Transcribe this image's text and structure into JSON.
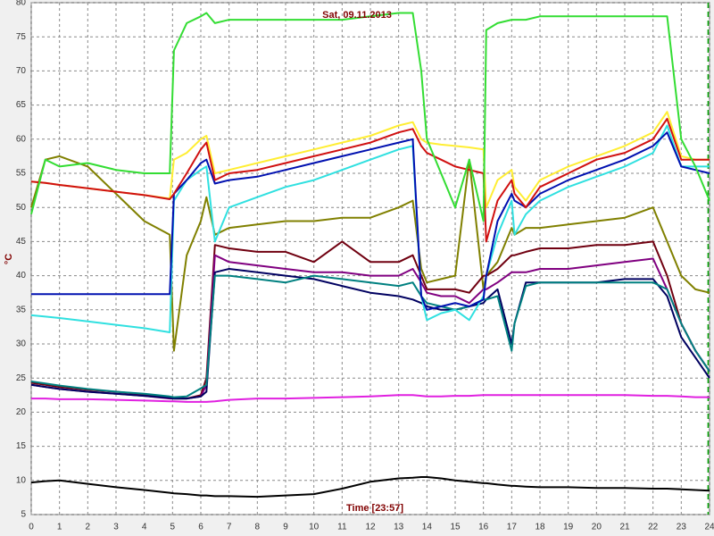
{
  "chart_data": {
    "type": "line",
    "title": "Sat, 09.11.2013",
    "x_label": "Time [23:57]",
    "y_label": "°C",
    "xlim": [
      0,
      24
    ],
    "ylim": [
      5,
      80
    ],
    "xticks": [
      0,
      1,
      2,
      3,
      4,
      5,
      6,
      7,
      8,
      9,
      10,
      11,
      12,
      13,
      14,
      15,
      16,
      17,
      18,
      19,
      20,
      21,
      22,
      23,
      24
    ],
    "yticks": [
      5,
      10,
      15,
      20,
      25,
      30,
      35,
      40,
      45,
      50,
      55,
      60,
      65,
      70,
      75,
      80
    ],
    "grid": true,
    "marker_x": 23.95,
    "marker_color": "#00a000",
    "x": [
      0,
      0.5,
      1,
      2,
      3,
      4,
      4.9,
      5.05,
      5.5,
      6,
      6.2,
      6.5,
      7,
      8,
      9,
      10,
      11,
      12,
      13,
      13.5,
      13.8,
      14,
      14.5,
      15,
      15.5,
      16,
      16.1,
      16.5,
      17,
      17.1,
      17.5,
      18,
      19,
      20,
      21,
      22,
      22.5,
      23,
      23.5,
      24
    ],
    "series": [
      {
        "color": "#808000",
        "values": [
          50,
          57,
          57.5,
          56,
          52,
          48,
          46,
          29,
          43,
          48,
          51.5,
          46,
          47,
          47.5,
          48,
          48,
          48.5,
          48.5,
          50,
          51,
          41,
          39,
          39.5,
          40,
          57,
          38,
          40,
          42,
          47,
          46,
          47,
          47,
          47.5,
          48,
          48.5,
          50,
          45,
          40,
          38,
          37.5
        ]
      },
      {
        "color": "#700010",
        "values": [
          24.3,
          24,
          23.7,
          23.3,
          23,
          22.6,
          22.2,
          22,
          22,
          22.5,
          25,
          44.5,
          44,
          43.5,
          43.5,
          42,
          45,
          42,
          42,
          43,
          40,
          38,
          38,
          38,
          37.5,
          40,
          40,
          41,
          43,
          43,
          43.5,
          44,
          44,
          44.5,
          44.5,
          45,
          40,
          33,
          29,
          26
        ]
      },
      {
        "color": "#800080",
        "values": [
          24,
          23.7,
          23.4,
          23,
          22.7,
          22.4,
          22,
          22,
          22,
          22.3,
          24,
          43,
          42,
          41.5,
          41,
          40.5,
          40.5,
          40,
          40,
          41,
          39,
          37.5,
          37,
          37,
          36,
          38,
          38,
          39,
          40.5,
          40.5,
          40.5,
          41,
          41,
          41.5,
          42,
          42.5,
          38,
          33,
          29,
          26
        ]
      },
      {
        "color": "#000060",
        "values": [
          24,
          23.7,
          23.4,
          23,
          22.7,
          22.4,
          22.1,
          22,
          22,
          22.3,
          23,
          40.5,
          41,
          40.5,
          40,
          39.5,
          38.5,
          37.5,
          37,
          36.5,
          36,
          35.5,
          35,
          35,
          35.5,
          36,
          36.5,
          38,
          30,
          33,
          39,
          39,
          39,
          39,
          39.5,
          39.5,
          37,
          31,
          28,
          25
        ]
      },
      {
        "color": "#008080",
        "values": [
          24.5,
          24.2,
          23.9,
          23.4,
          23,
          22.7,
          22.3,
          22.2,
          22.3,
          23.5,
          24,
          40,
          40,
          39.5,
          39,
          40,
          39.5,
          39,
          38.5,
          39,
          37,
          36,
          35.5,
          35,
          35.5,
          36.5,
          36.5,
          37,
          29,
          33,
          38.5,
          39,
          39,
          39,
          39,
          39,
          38,
          33,
          29,
          26
        ]
      },
      {
        "color": "#e020e0",
        "values": [
          22,
          22,
          21.9,
          21.9,
          21.8,
          21.7,
          21.6,
          21.6,
          21.5,
          21.5,
          21.5,
          21.6,
          21.8,
          22,
          22,
          22.1,
          22.2,
          22.3,
          22.5,
          22.5,
          22.4,
          22.3,
          22.3,
          22.4,
          22.4,
          22.5,
          22.5,
          22.5,
          22.5,
          22.5,
          22.5,
          22.5,
          22.5,
          22.5,
          22.5,
          22.4,
          22.4,
          22.3,
          22.2,
          22.2
        ]
      },
      {
        "color": "#000000",
        "values": [
          9.7,
          9.9,
          10,
          9.5,
          9,
          8.6,
          8.2,
          8.1,
          8,
          7.8,
          7.8,
          7.7,
          7.7,
          7.6,
          7.8,
          8,
          8.8,
          9.8,
          10.3,
          10.4,
          10.5,
          10.5,
          10.3,
          10,
          9.8,
          9.6,
          9.6,
          9.4,
          9.2,
          9.2,
          9.1,
          9,
          9,
          8.9,
          8.9,
          8.8,
          8.8,
          8.7,
          8.6,
          8.5
        ]
      },
      {
        "color": "#30e0e0",
        "values": [
          34.2,
          34,
          33.8,
          33.3,
          32.8,
          32.3,
          31.7,
          51,
          54,
          55.5,
          56,
          45,
          50,
          51.5,
          53,
          54,
          55.5,
          57,
          58.5,
          59,
          37,
          33.5,
          34.5,
          35,
          33.5,
          37,
          40,
          46,
          51,
          46,
          49,
          51,
          53,
          54.5,
          56,
          58,
          62,
          56,
          56,
          56
        ]
      },
      {
        "color": "#0010b0",
        "values": [
          37.3,
          37.3,
          37.3,
          37.3,
          37.3,
          37.3,
          37.3,
          52,
          54,
          56.5,
          57,
          53.5,
          54,
          54.5,
          55.5,
          56.5,
          57.5,
          58.5,
          59.5,
          60,
          37,
          35,
          35.5,
          36,
          35.5,
          36.5,
          40,
          48,
          52,
          51,
          50,
          52,
          54,
          55.5,
          57,
          59,
          61,
          56,
          55.5,
          55
        ]
      },
      {
        "color": "#ffee33",
        "values": [
          53.8,
          53.6,
          53.3,
          52.8,
          52.3,
          51.8,
          51.3,
          57,
          58,
          60,
          60.5,
          55,
          55.5,
          56.5,
          57.5,
          58.5,
          59.5,
          60.5,
          62,
          62.5,
          60,
          59.5,
          59.2,
          59,
          58.8,
          58.5,
          50,
          54,
          55.5,
          53,
          51,
          54,
          56,
          57.5,
          59,
          61,
          64,
          57.5,
          57,
          57
        ]
      },
      {
        "color": "#d01010",
        "values": [
          53.8,
          53.6,
          53.3,
          52.8,
          52.3,
          51.8,
          51.2,
          52,
          55,
          58.5,
          59.5,
          54,
          55,
          55.5,
          56.5,
          57.5,
          58.5,
          59.5,
          61,
          61.5,
          59,
          58,
          57,
          56,
          55.5,
          55,
          45,
          51,
          54,
          52,
          50,
          53,
          55,
          57,
          58,
          60,
          63,
          57,
          57,
          57
        ]
      },
      {
        "color": "#33dd33",
        "values": [
          49,
          57,
          56,
          56.5,
          55.5,
          55,
          55,
          73,
          77,
          78,
          78.5,
          77,
          77.5,
          77.5,
          77.5,
          77.5,
          77.5,
          78,
          78.5,
          78.5,
          70,
          60,
          55,
          50,
          57,
          48,
          76,
          77,
          77.5,
          77.5,
          77.5,
          78,
          78,
          78,
          78,
          78,
          78,
          60,
          56,
          51
        ]
      }
    ]
  }
}
